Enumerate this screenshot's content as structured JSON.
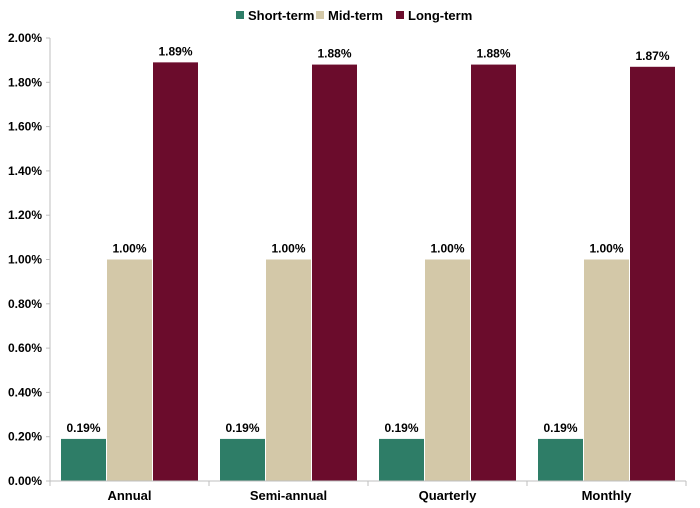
{
  "chart_data": {
    "type": "bar",
    "categories": [
      "Annual",
      "Semi-annual",
      "Quarterly",
      "Monthly"
    ],
    "series": [
      {
        "name": "Short-term",
        "color": "#2e7d67",
        "values": [
          0.19,
          0.19,
          0.19,
          0.19
        ],
        "labels": [
          "0.19%",
          "0.19%",
          "0.19%",
          "0.19%"
        ]
      },
      {
        "name": "Mid-term",
        "color": "#d3c8a8",
        "values": [
          1.0,
          1.0,
          1.0,
          1.0
        ],
        "labels": [
          "1.00%",
          "1.00%",
          "1.00%",
          "1.00%"
        ]
      },
      {
        "name": "Long-term",
        "color": "#6b0c2c",
        "values": [
          1.89,
          1.88,
          1.88,
          1.87
        ],
        "labels": [
          "1.89%",
          "1.88%",
          "1.88%",
          "1.87%"
        ]
      }
    ],
    "ylim": [
      0,
      2.0
    ],
    "yticks": [
      {
        "value": 0.0,
        "label": "0.00%"
      },
      {
        "value": 0.2,
        "label": "0.20%"
      },
      {
        "value": 0.4,
        "label": "0.40%"
      },
      {
        "value": 0.6,
        "label": "0.60%"
      },
      {
        "value": 0.8,
        "label": "0.80%"
      },
      {
        "value": 1.0,
        "label": "1.00%"
      },
      {
        "value": 1.2,
        "label": "1.20%"
      },
      {
        "value": 1.4,
        "label": "1.40%"
      },
      {
        "value": 1.6,
        "label": "1.60%"
      },
      {
        "value": 1.8,
        "label": "1.80%"
      },
      {
        "value": 2.0,
        "label": "2.00%"
      }
    ],
    "title": "",
    "xlabel": "",
    "ylabel": "",
    "grid": false,
    "legend": "top-center"
  }
}
